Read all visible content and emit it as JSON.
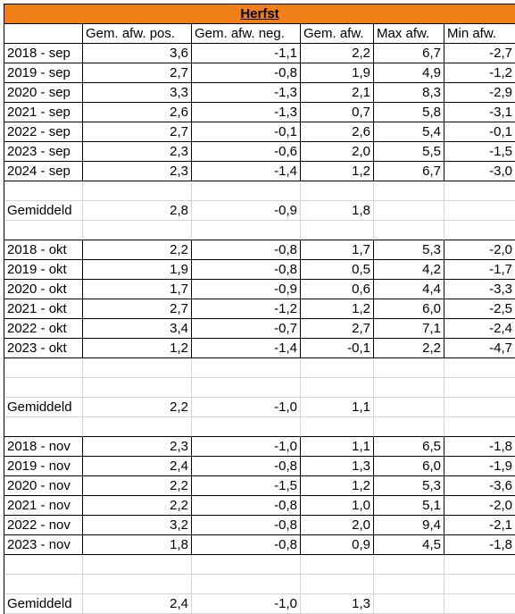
{
  "header": {
    "title": "Herfst"
  },
  "table": {
    "columns": [
      "Gem. afw. pos.",
      "Gem. afw. neg.",
      "Gem. afw.",
      "Max afw.",
      "Min afw."
    ],
    "sections": [
      {
        "rows": [
          [
            "2018 - sep",
            "3,6",
            "-1,1",
            "2,2",
            "6,7",
            "-2,7"
          ],
          [
            "2019 - sep",
            "2,7",
            "-0,8",
            "1,9",
            "4,9",
            "-1,2"
          ],
          [
            "2020 - sep",
            "3,3",
            "-1,3",
            "2,1",
            "8,3",
            "-2,9"
          ],
          [
            "2021 - sep",
            "2,6",
            "-1,3",
            "0,7",
            "5,8",
            "-3,1"
          ],
          [
            "2022 - sep",
            "2,7",
            "-0,1",
            "2,6",
            "5,4",
            "-0,1"
          ],
          [
            "2023 - sep",
            "2,3",
            "-0,6",
            "2,0",
            "5,5",
            "-1,5"
          ],
          [
            "2024 - sep",
            "2,3",
            "-1,4",
            "1,2",
            "6,7",
            "-3,0"
          ]
        ],
        "average": [
          "Gemiddeld",
          "2,8",
          "-0,9",
          "1,8"
        ]
      },
      {
        "rows": [
          [
            "2018 - okt",
            "2,2",
            "-0,8",
            "1,7",
            "5,3",
            "-2,0"
          ],
          [
            "2019 - okt",
            "1,9",
            "-0,8",
            "0,5",
            "4,2",
            "-1,7"
          ],
          [
            "2020 - okt",
            "1,7",
            "-0,9",
            "0,6",
            "4,4",
            "-3,3"
          ],
          [
            "2021 - okt",
            "2,7",
            "-1,2",
            "1,2",
            "6,0",
            "-2,5"
          ],
          [
            "2022 - okt",
            "3,4",
            "-0,7",
            "2,7",
            "7,1",
            "-2,4"
          ],
          [
            "2023 - okt",
            "1,2",
            "-1,4",
            "-0,1",
            "2,2",
            "-4,7"
          ]
        ],
        "average": [
          "Gemiddeld",
          "2,2",
          "-1,0",
          "1,1"
        ]
      },
      {
        "rows": [
          [
            "2018 - nov",
            "2,3",
            "-1,0",
            "1,1",
            "6,5",
            "-1,8"
          ],
          [
            "2019 - nov",
            "2,4",
            "-0,8",
            "1,3",
            "6,0",
            "-1,9"
          ],
          [
            "2020 - nov",
            "2,2",
            "-1,5",
            "1,2",
            "5,3",
            "-3,6"
          ],
          [
            "2021 - nov",
            "2,2",
            "-0,8",
            "1,0",
            "5,1",
            "-2,0"
          ],
          [
            "2022 - nov",
            "3,2",
            "-0,8",
            "2,0",
            "9,4",
            "-2,1"
          ],
          [
            "2023 - nov",
            "1,8",
            "-0,8",
            "0,9",
            "4,5",
            "-1,8"
          ]
        ],
        "average": [
          "Gemiddeld",
          "2,4",
          "-1,0",
          "1,3"
        ]
      }
    ]
  }
}
